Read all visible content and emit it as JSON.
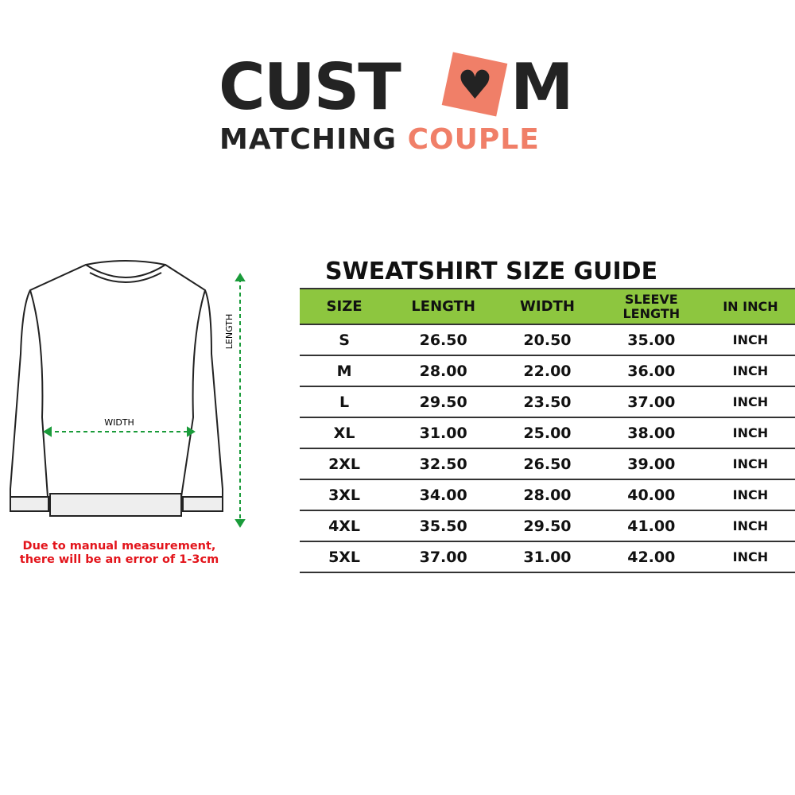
{
  "logo": {
    "top": "CUST",
    "top_end": "M",
    "bottom_dark": "MATCHING",
    "bottom_accent": "COUPLE",
    "accent_color": "#f07f68",
    "heart_icon": "heart-icon"
  },
  "diagram": {
    "length_label": "LENGTH",
    "width_label": "WIDTH",
    "arrow_color": "#1a9b3a"
  },
  "note": {
    "line1": "Due to manual measurement,",
    "line2": "there will be an error of 1-3cm"
  },
  "table": {
    "title": "SWEATSHIRT SIZE GUIDE",
    "header_color": "#8dc63f",
    "headers": [
      "SIZE",
      "LENGTH",
      "WIDTH",
      "SLEEVE LENGTH",
      "IN INCH"
    ],
    "rows": [
      [
        "S",
        "26.50",
        "20.50",
        "35.00",
        "INCH"
      ],
      [
        "M",
        "28.00",
        "22.00",
        "36.00",
        "INCH"
      ],
      [
        "L",
        "29.50",
        "23.50",
        "37.00",
        "INCH"
      ],
      [
        "XL",
        "31.00",
        "25.00",
        "38.00",
        "INCH"
      ],
      [
        "2XL",
        "32.50",
        "26.50",
        "39.00",
        "INCH"
      ],
      [
        "3XL",
        "34.00",
        "28.00",
        "40.00",
        "INCH"
      ],
      [
        "4XL",
        "35.50",
        "29.50",
        "41.00",
        "INCH"
      ],
      [
        "5XL",
        "37.00",
        "31.00",
        "42.00",
        "INCH"
      ]
    ]
  }
}
